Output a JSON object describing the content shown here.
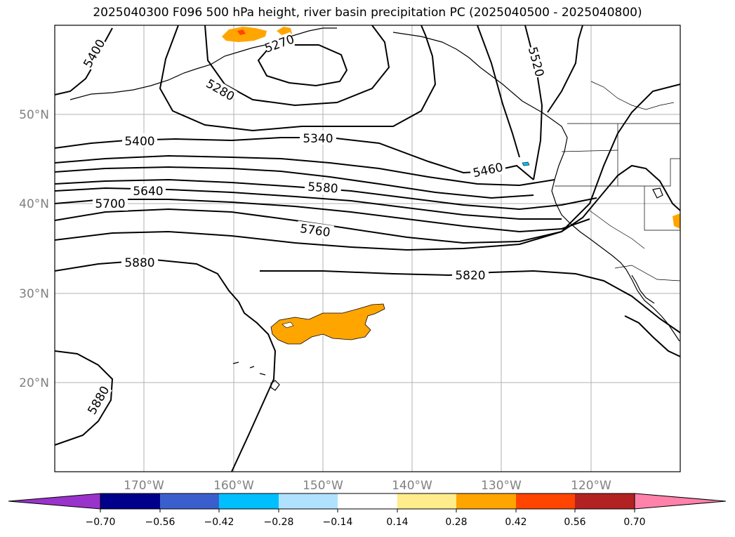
{
  "title": "2025040300 F096 500 hPa height, river basin precipitation PC (2025040500 - 2025040800)",
  "lat_labels": [
    "50°N",
    "40°N",
    "30°N",
    "20°N"
  ],
  "lon_labels": [
    "170°W",
    "160°W",
    "150°W",
    "140°W",
    "130°W",
    "120°W"
  ],
  "contour_labels": [
    "5400",
    "5280",
    "5270",
    "5520",
    "5400",
    "5340",
    "5460",
    "5640",
    "5580",
    "5700",
    "5760",
    "5880",
    "5820",
    "5880"
  ],
  "colorbar": {
    "ticks": [
      "−0.70",
      "−0.56",
      "−0.42",
      "−0.28",
      "−0.14",
      "0.14",
      "0.28",
      "0.42",
      "0.56",
      "0.70"
    ],
    "colors": {
      "under": "#9933cc",
      "bins": [
        "#00008b",
        "#3a5fcd",
        "#00bfff",
        "#b0e2ff",
        "#ffffff",
        "#ffec8b",
        "#ffa500",
        "#ff4500",
        "#b22222"
      ],
      "over": "#ff82ab"
    }
  },
  "fill_colors": {
    "positive_precip": "#ffa500",
    "strong_precip": "#ff4500",
    "negative_precip": "#00bfff"
  }
}
